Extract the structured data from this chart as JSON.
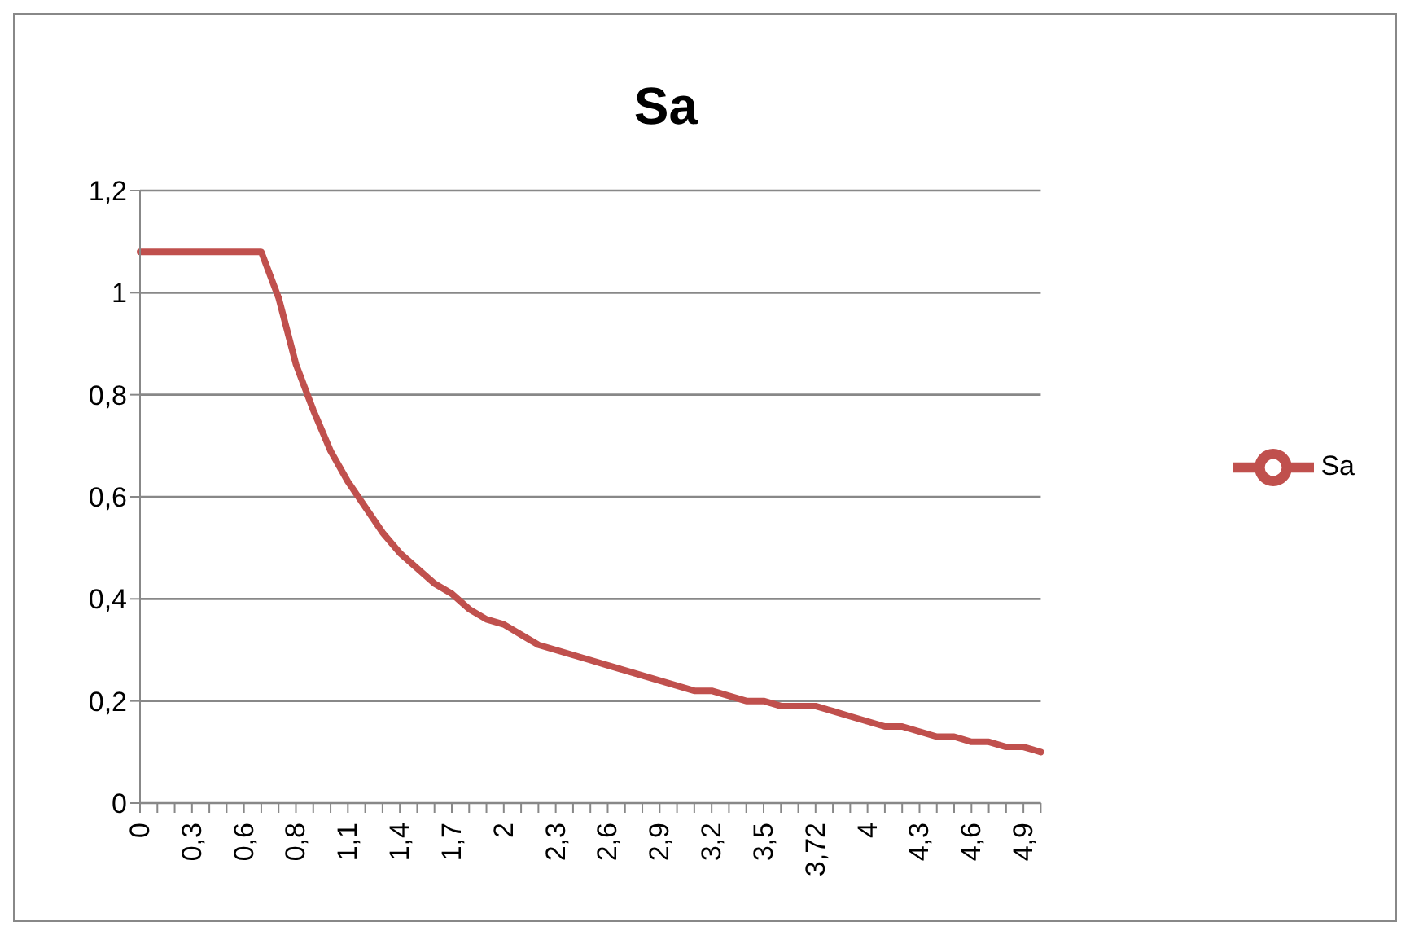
{
  "chart_data": {
    "type": "line",
    "title": "Sa",
    "categories": [
      "0",
      null,
      null,
      "0,3",
      null,
      null,
      "0,6",
      null,
      null,
      "0,8",
      null,
      null,
      "1,1",
      null,
      null,
      "1,4",
      null,
      null,
      "1,7",
      null,
      null,
      "2",
      null,
      null,
      "2,3",
      null,
      null,
      "2,6",
      null,
      null,
      "2,9",
      null,
      null,
      "3,2",
      null,
      null,
      "3,5",
      null,
      null,
      "3,72",
      null,
      null,
      "4",
      null,
      null,
      "4,3",
      null,
      null,
      "4,6",
      null,
      null,
      "4,9",
      null
    ],
    "series": [
      {
        "name": "Sa",
        "color": "#c0504d",
        "values": [
          1.08,
          1.08,
          1.08,
          1.08,
          1.08,
          1.08,
          1.08,
          1.08,
          0.99,
          0.86,
          0.77,
          0.69,
          0.63,
          0.58,
          0.53,
          0.49,
          0.46,
          0.43,
          0.41,
          0.38,
          0.36,
          0.35,
          0.33,
          0.31,
          0.3,
          0.29,
          0.28,
          0.27,
          0.26,
          0.25,
          0.24,
          0.23,
          0.22,
          0.22,
          0.21,
          0.2,
          0.2,
          0.19,
          0.19,
          0.19,
          0.18,
          0.17,
          0.16,
          0.15,
          0.15,
          0.14,
          0.13,
          0.13,
          0.12,
          0.12,
          0.11,
          0.11,
          0.1
        ]
      }
    ],
    "ylim": [
      0,
      1.2
    ],
    "yticks": [
      0,
      {
        "value": 0.2,
        "label": "0,2"
      },
      {
        "value": 0.4,
        "label": "0,4"
      },
      {
        "value": 0.6,
        "label": "0,6"
      },
      {
        "value": 0.8,
        "label": "0,8"
      },
      1,
      {
        "value": 1.2,
        "label": "1,2"
      }
    ],
    "grid": "y",
    "legend": "right",
    "marker": "none",
    "line_style": "solid"
  }
}
